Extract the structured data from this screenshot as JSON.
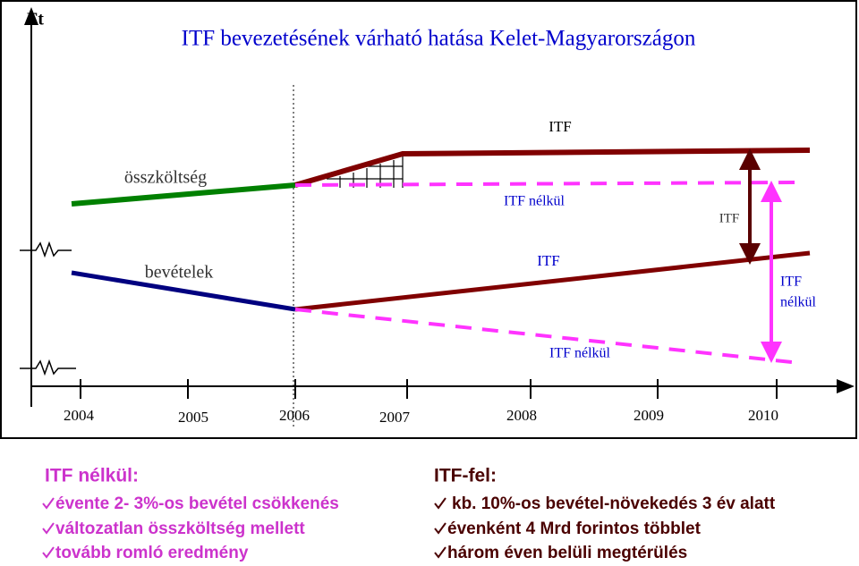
{
  "header": {
    "unit": "Ft",
    "title": "ITF bevezetésének várható hatása Kelet-Magyarországon"
  },
  "labels": {
    "cost": "összköltség",
    "revenue": "bevételek",
    "cost_itf": "ITF",
    "cost_no_itf": "ITF nélkül",
    "cost_gap": "ITF",
    "revenue_itf": "ITF",
    "revenue_gap_1": "ITF",
    "revenue_gap_2": "nélkül",
    "revenue_no_itf": "ITF nélkül"
  },
  "years": [
    "2004",
    "2005",
    "2006",
    "2007",
    "2008",
    "2009",
    "2010"
  ],
  "notes": {
    "left": {
      "title": "ITF nélkül:",
      "items": [
        "évente 2- 3%-os bevétel csökkenés",
        "változatlan összköltség mellett",
        "tovább romló eredmény"
      ]
    },
    "right": {
      "title": "ITF-fel:",
      "items": [
        "kb. 10%-os bevétel-növekedés 3 év alatt",
        "évenként 4 Mrd forintos többlet",
        "három éven belüli megtérülés"
      ]
    }
  }
}
